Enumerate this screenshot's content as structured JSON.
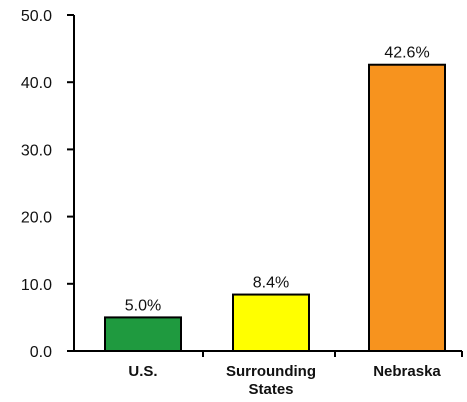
{
  "chart_data": {
    "type": "bar",
    "categories": [
      [
        "U.S."
      ],
      [
        "Surrounding",
        "States"
      ],
      [
        "Nebraska"
      ]
    ],
    "values": [
      5.0,
      8.4,
      42.6
    ],
    "data_labels": [
      "5.0%",
      "8.4%",
      "42.6%"
    ],
    "colors": [
      "#1f9a3f",
      "#ffff00",
      "#f7931e"
    ],
    "ylim": [
      0,
      50
    ],
    "yticks": [
      0,
      10,
      20,
      30,
      40,
      50
    ],
    "ytick_labels": [
      "0.0",
      "10.0",
      "20.0",
      "30.0",
      "40.0",
      "50.0"
    ],
    "grid": false,
    "title": "",
    "xlabel": "",
    "ylabel": ""
  }
}
